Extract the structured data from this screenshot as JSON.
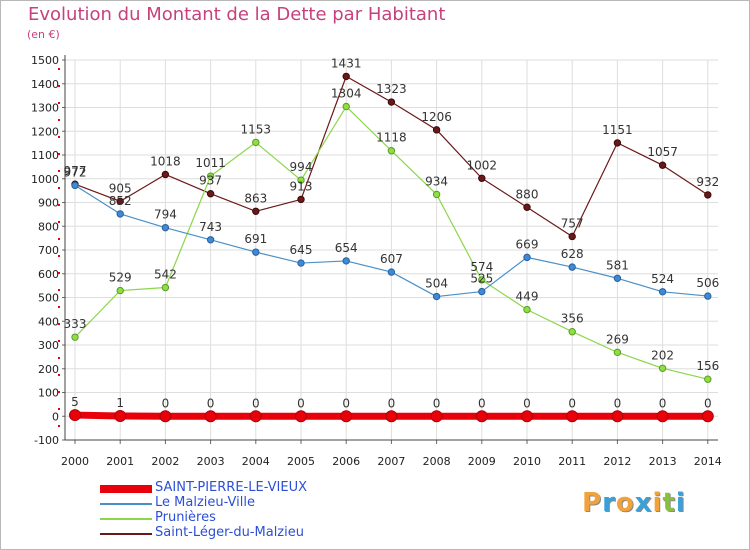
{
  "chart_data": {
    "type": "line",
    "title": "Evolution du Montant de la Dette par Habitant",
    "subtitle": "(en €)",
    "x": [
      "2000",
      "2001",
      "2002",
      "2003",
      "2004",
      "2005",
      "2006",
      "2007",
      "2008",
      "2009",
      "2010",
      "2011",
      "2012",
      "2013",
      "2014"
    ],
    "ylim": [
      -100,
      1500
    ],
    "yticks": [
      -100,
      0,
      100,
      200,
      300,
      400,
      500,
      600,
      700,
      800,
      900,
      1000,
      1100,
      1200,
      1300,
      1400,
      1500
    ],
    "grid": true,
    "legend_position": "bottom-left",
    "series": [
      {
        "name": "SAINT-PIERRE-LE-VIEUX",
        "color": "#e8000b",
        "values": [
          5,
          1,
          0,
          0,
          0,
          0,
          0,
          0,
          0,
          0,
          0,
          0,
          0,
          0,
          0
        ]
      },
      {
        "name": "Le Malzieu-Ville",
        "color": "#4a90c8",
        "values": [
          972,
          852,
          794,
          743,
          691,
          645,
          654,
          607,
          504,
          525,
          669,
          628,
          581,
          524,
          506
        ]
      },
      {
        "name": "Prunières",
        "color": "#8bd64a",
        "values": [
          333,
          529,
          542,
          1011,
          1153,
          994,
          1304,
          1118,
          934,
          574,
          449,
          356,
          269,
          202,
          156
        ]
      },
      {
        "name": "Saint-Léger-du-Malzieu",
        "color": "#6b1818",
        "values": [
          977,
          905,
          1018,
          937,
          863,
          913,
          1431,
          1323,
          1206,
          1002,
          880,
          757,
          1151,
          1057,
          932
        ]
      }
    ]
  },
  "logo": {
    "letters": [
      "P",
      "r",
      "o",
      "x",
      "i",
      "t",
      "i"
    ],
    "colors": [
      "#f2a23a",
      "#3aa0d8",
      "#f2a23a",
      "#3aa0d8",
      "#f2a23a",
      "#8ac040",
      "#3aa0d8"
    ]
  }
}
